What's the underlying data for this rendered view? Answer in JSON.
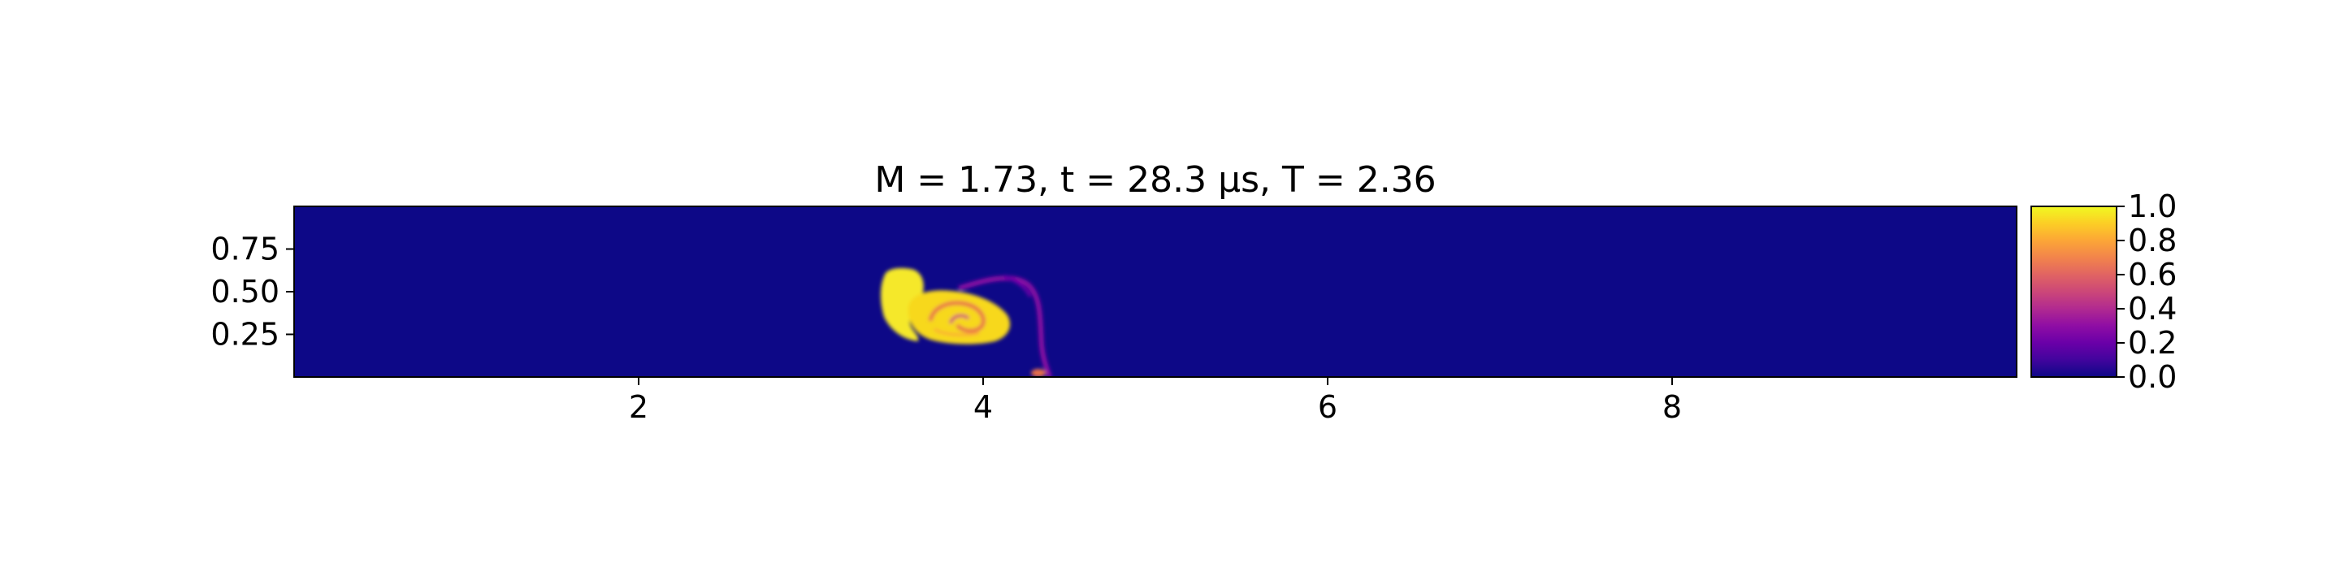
{
  "chart_data": {
    "type": "heatmap",
    "title": "M = 1.73, t = 28.3 μs, T = 2.36",
    "xlabel": "",
    "ylabel": "",
    "xlim": [
      0,
      10
    ],
    "ylim": [
      0,
      1
    ],
    "x_ticks": [
      {
        "value": 2,
        "label": "2"
      },
      {
        "value": 4,
        "label": "4"
      },
      {
        "value": 6,
        "label": "6"
      },
      {
        "value": 8,
        "label": "8"
      }
    ],
    "y_ticks": [
      {
        "value": 0.25,
        "label": "0.25"
      },
      {
        "value": 0.5,
        "label": "0.50"
      },
      {
        "value": 0.75,
        "label": "0.75"
      }
    ],
    "colormap": "plasma",
    "colorbar": {
      "min": 0.0,
      "max": 1.0,
      "ticks": [
        {
          "value": 0.0,
          "label": "0.0"
        },
        {
          "value": 0.2,
          "label": "0.2"
        },
        {
          "value": 0.4,
          "label": "0.4"
        },
        {
          "value": 0.6,
          "label": "0.6"
        },
        {
          "value": 0.8,
          "label": "0.8"
        },
        {
          "value": 1.0,
          "label": "1.0"
        }
      ]
    },
    "background_value": 0.0,
    "features": [
      {
        "name": "upper-lobe",
        "shape": "blob",
        "x": 3.53,
        "y": 0.47,
        "value": 1.0
      },
      {
        "name": "roll-up-vortex",
        "shape": "spiral",
        "x": 3.85,
        "y": 0.36,
        "value": 0.95
      },
      {
        "name": "trailing-filament",
        "shape": "filament",
        "x": 4.25,
        "y": 0.3,
        "value": 0.35
      },
      {
        "name": "wall-spot",
        "shape": "spot",
        "x": 4.33,
        "y": 0.02,
        "value": 0.6
      }
    ],
    "grid": false,
    "legend": "none"
  }
}
